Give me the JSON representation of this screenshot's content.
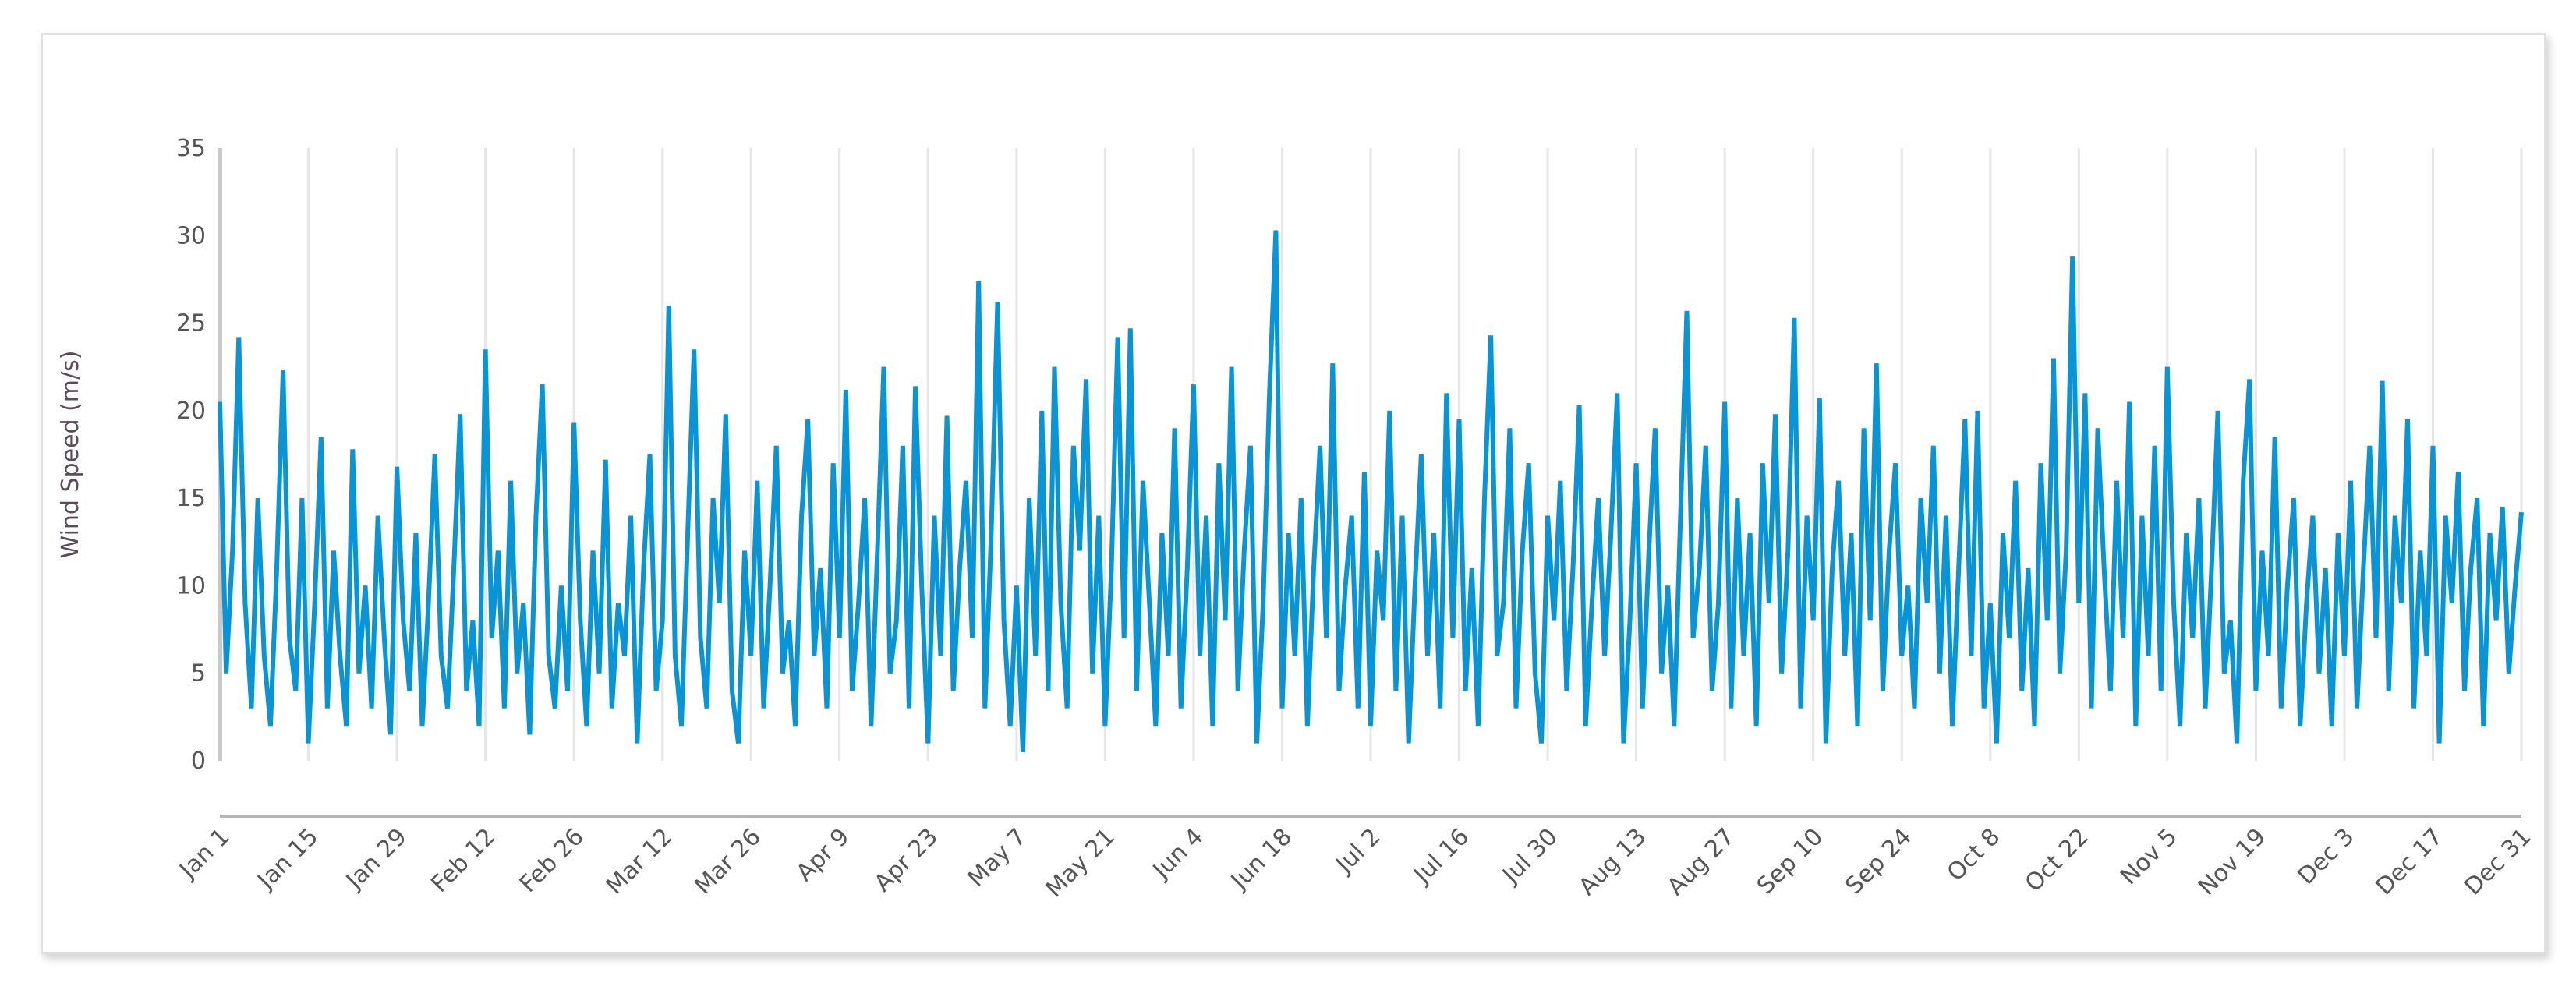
{
  "chart_data": {
    "type": "line",
    "title": "",
    "xlabel": "",
    "ylabel": "Wind Speed (m/s)",
    "ylim": [
      0,
      35
    ],
    "yticks": [
      0,
      5,
      10,
      15,
      20,
      25,
      30,
      35
    ],
    "xticks": [
      "Jan 1",
      "Jan 15",
      "Jan 29",
      "Feb 12",
      "Feb 26",
      "Mar 12",
      "Mar 26",
      "Apr 9",
      "Apr 23",
      "May 7",
      "May 21",
      "Jun 4",
      "Jun 18",
      "Jul 2",
      "Jul 16",
      "Jul 30",
      "Aug 13",
      "Aug 27",
      "Sep 10",
      "Sep 24",
      "Oct 8",
      "Oct 22",
      "Nov 5",
      "Nov 19",
      "Dec 3",
      "Dec 17",
      "Dec 31"
    ],
    "x_start": "Jan 1",
    "x_end": "Dec 31",
    "grid": "vertical",
    "series_color": "#0795d8",
    "series": [
      {
        "values": [
          20.5,
          5,
          12,
          24.2,
          9,
          3,
          15,
          6,
          2,
          11,
          22.3,
          7,
          4,
          15,
          1,
          9,
          18.5,
          3,
          12,
          6,
          2,
          17.8,
          5,
          10,
          3,
          14,
          7,
          1.5,
          16.8,
          8,
          4,
          13,
          2,
          9,
          17.5,
          6,
          3,
          11,
          19.8,
          4,
          8,
          2,
          23.5,
          7,
          12,
          3,
          16,
          5,
          9,
          1.5,
          14,
          21.5,
          6,
          3,
          10,
          4,
          19.3,
          8,
          2,
          12,
          5,
          17.2,
          3,
          9,
          6,
          14,
          1,
          11,
          17.5,
          4,
          8,
          26,
          6,
          2,
          13,
          23.5,
          7,
          3,
          15,
          9,
          19.8,
          4,
          1,
          12,
          6,
          16,
          3,
          10,
          18,
          5,
          8,
          2,
          14,
          19.5,
          6,
          11,
          3,
          17,
          7,
          21.2,
          4,
          9,
          15,
          2,
          12,
          22.5,
          5,
          8,
          18,
          3,
          21.4,
          10,
          1,
          14,
          6,
          19.7,
          4,
          11,
          16,
          7,
          27.4,
          3,
          13,
          26.2,
          8,
          2,
          10,
          0.5,
          15,
          6,
          20,
          4,
          22.5,
          9,
          3,
          18,
          12,
          21.8,
          5,
          14,
          2,
          11,
          24.2,
          7,
          24.7,
          4,
          16,
          9,
          2,
          13,
          6,
          19,
          3,
          11,
          21.5,
          6,
          14,
          2,
          17,
          8,
          22.5,
          4,
          12,
          18,
          1,
          9,
          21,
          30.3,
          3,
          13,
          6,
          15,
          2,
          11,
          18,
          7,
          22.7,
          4,
          10,
          14,
          3,
          16.5,
          2,
          12,
          8,
          20,
          4,
          14,
          1,
          10,
          17.5,
          6,
          13,
          3,
          21,
          7,
          19.5,
          4,
          11,
          2,
          15,
          24.3,
          6,
          9,
          19,
          3,
          12,
          17,
          5,
          1,
          14,
          8,
          16,
          4,
          11,
          20.3,
          2,
          9,
          15,
          6,
          13,
          21,
          1,
          8,
          17,
          3,
          12,
          19,
          5,
          10,
          2,
          14,
          25.7,
          7,
          11,
          18,
          4,
          9,
          20.5,
          3,
          15,
          6,
          13,
          2,
          17,
          9,
          19.8,
          5,
          12,
          25.3,
          3,
          14,
          8,
          20.7,
          1,
          11,
          16,
          6,
          13,
          2,
          19,
          8,
          22.7,
          4,
          12,
          17,
          6,
          10,
          3,
          15,
          9,
          18,
          5,
          14,
          2,
          11,
          19.5,
          6,
          20,
          3,
          9,
          1,
          13,
          7,
          16,
          4,
          11,
          2,
          17,
          8,
          23,
          5,
          12,
          28.8,
          9,
          21,
          3,
          19,
          11,
          4,
          16,
          7,
          20.5,
          2,
          14,
          6,
          18,
          4,
          22.5,
          9,
          2,
          13,
          7,
          15,
          3,
          11,
          20,
          5,
          8,
          1,
          16,
          21.8,
          4,
          12,
          6,
          18.5,
          3,
          10,
          15,
          2,
          9,
          14,
          5,
          11,
          2,
          13,
          6,
          16,
          3,
          11,
          18,
          7,
          21.7,
          4,
          14,
          9,
          19.5,
          3,
          12,
          6,
          18,
          1,
          14,
          9,
          16.5,
          4,
          11,
          15,
          2,
          13,
          8,
          14.5,
          5,
          10,
          14.2
        ]
      }
    ]
  }
}
